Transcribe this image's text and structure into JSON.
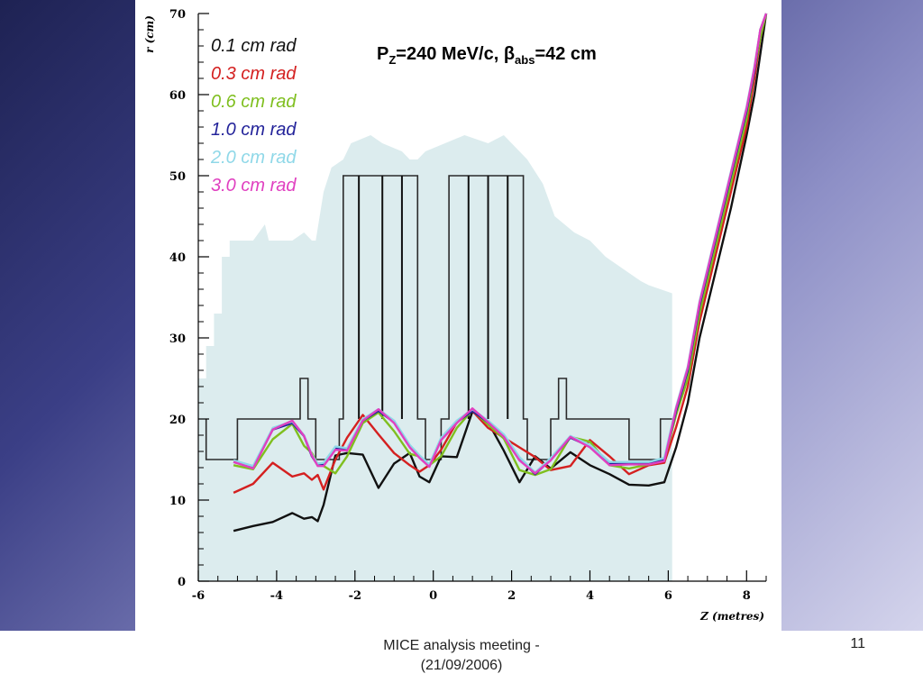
{
  "slide": {
    "footer_line1": "MICE analysis meeting -",
    "footer_line2": "(21/09/2006)",
    "number": "11"
  },
  "colors": {
    "background_dark": "#1e2253",
    "background_light": "#d4d4ec",
    "aperture_fill": "#dcecee"
  },
  "chart_data": {
    "type": "line",
    "title": "P_Z=240 MeV/c, β_abs=42 cm",
    "title_parts": {
      "p": "P",
      "p_sub": "Z",
      "mid": "=240 MeV/c, ",
      "beta": "β",
      "beta_sub": "abs",
      "end": "=42 cm"
    },
    "xlabel": "Z (metres)",
    "ylabel": "r (cm)",
    "xlim": [
      -6,
      8.5
    ],
    "ylim": [
      0,
      70
    ],
    "xticks": [
      "-6",
      "-4",
      "-2",
      "0",
      "2",
      "4",
      "6",
      "8"
    ],
    "yticks": [
      "0",
      "10",
      "20",
      "30",
      "40",
      "50",
      "60",
      "70"
    ],
    "grid": false,
    "legend_position": "top-left",
    "aperture": [
      [
        -6,
        25
      ],
      [
        -5.8,
        25
      ],
      [
        -5.8,
        29
      ],
      [
        -5.6,
        29
      ],
      [
        -5.6,
        33
      ],
      [
        -5.4,
        33
      ],
      [
        -5.4,
        40
      ],
      [
        -5.2,
        40
      ],
      [
        -5.2,
        42
      ],
      [
        -4.6,
        42
      ],
      [
        -4.3,
        44
      ],
      [
        -4.2,
        42
      ],
      [
        -3.6,
        42
      ],
      [
        -3.3,
        43
      ],
      [
        -3.1,
        42
      ],
      [
        -3,
        42
      ],
      [
        -2.8,
        48
      ],
      [
        -2.6,
        51
      ],
      [
        -2.3,
        52
      ],
      [
        -2.1,
        54
      ],
      [
        -1.6,
        55
      ],
      [
        -1.3,
        54
      ],
      [
        -0.8,
        53
      ],
      [
        -0.6,
        52
      ],
      [
        -0.4,
        52
      ],
      [
        -0.2,
        53
      ],
      [
        0.3,
        54
      ],
      [
        0.8,
        55
      ],
      [
        1.4,
        54
      ],
      [
        1.8,
        55
      ],
      [
        2.4,
        52
      ],
      [
        2.8,
        49
      ],
      [
        3.1,
        45
      ],
      [
        3.6,
        43
      ],
      [
        4.0,
        42
      ],
      [
        4.4,
        40
      ],
      [
        5.0,
        38
      ],
      [
        5.3,
        37
      ],
      [
        5.5,
        36.5
      ],
      [
        6.1,
        35.5
      ],
      [
        6.1,
        0
      ],
      [
        -6,
        0
      ]
    ],
    "magnet_outline": [
      [
        -5.8,
        20
      ],
      [
        -5.8,
        15
      ],
      [
        -5.0,
        15
      ],
      [
        -5.0,
        20
      ],
      [
        -3.4,
        20
      ],
      [
        -3.4,
        25
      ],
      [
        -3.2,
        25
      ],
      [
        -3.2,
        20
      ],
      [
        -3.0,
        20
      ],
      [
        -3.0,
        15
      ],
      [
        -2.4,
        15
      ],
      [
        -2.4,
        20
      ],
      [
        -2.3,
        20
      ],
      [
        -2.3,
        50
      ],
      [
        -0.4,
        50
      ],
      [
        -0.4,
        20
      ],
      [
        -0.2,
        20
      ],
      [
        -0.2,
        15
      ],
      [
        0.2,
        15
      ],
      [
        0.2,
        20
      ],
      [
        0.4,
        20
      ],
      [
        0.4,
        50
      ],
      [
        2.3,
        50
      ],
      [
        2.3,
        20
      ],
      [
        2.4,
        20
      ],
      [
        2.4,
        15
      ],
      [
        3.0,
        15
      ],
      [
        3.0,
        20
      ],
      [
        3.2,
        20
      ],
      [
        3.2,
        25
      ],
      [
        3.4,
        25
      ],
      [
        3.4,
        20
      ],
      [
        5.0,
        20
      ],
      [
        5.0,
        15
      ],
      [
        5.8,
        15
      ],
      [
        5.8,
        20
      ],
      [
        6.1,
        20
      ]
    ],
    "coil_dividers_x": [
      -1.9,
      -1.3,
      -0.8,
      0.9,
      1.4,
      1.9
    ],
    "series": [
      {
        "name": "0.1 cm rad",
        "color": "#111111",
        "x": [
          -5.1,
          -4.6,
          -4.1,
          -3.6,
          -3.3,
          -3.1,
          -2.95,
          -2.8,
          -2.5,
          -2.2,
          -1.8,
          -1.4,
          -1.0,
          -0.6,
          -0.35,
          -0.1,
          0.2,
          0.6,
          1.0,
          1.4,
          1.8,
          2.2,
          2.6,
          3.0,
          3.5,
          4.0,
          4.5,
          5.0,
          5.5,
          5.9,
          6.2,
          6.5,
          6.8,
          7.2,
          7.6,
          8.0,
          8.2,
          8.35,
          8.5
        ],
        "y": [
          6.2,
          6.8,
          7.3,
          8.4,
          7.7,
          7.9,
          7.4,
          9.4,
          15.5,
          15.8,
          15.6,
          11.5,
          14.5,
          15.8,
          12.9,
          12.2,
          15.4,
          15.3,
          20.9,
          19.6,
          16.1,
          12.2,
          15.4,
          13.9,
          15.9,
          14.3,
          13.2,
          11.9,
          11.8,
          12.2,
          16.5,
          22.0,
          30.0,
          38.0,
          46.0,
          55.0,
          60.0,
          65.0,
          70.0
        ]
      },
      {
        "name": "0.3 cm rad",
        "color": "#d42020",
        "x": [
          -5.1,
          -4.6,
          -4.1,
          -3.6,
          -3.3,
          -3.1,
          -2.95,
          -2.8,
          -2.5,
          -2.2,
          -1.8,
          -1.4,
          -1.0,
          -0.6,
          -0.35,
          -0.1,
          0.2,
          0.6,
          1.0,
          1.4,
          1.8,
          2.2,
          2.6,
          3.0,
          3.5,
          4.0,
          4.5,
          5.0,
          5.5,
          5.9,
          6.2,
          6.5,
          6.8,
          7.2,
          7.6,
          8.0,
          8.2,
          8.35,
          8.5
        ],
        "y": [
          10.9,
          12.0,
          14.6,
          12.9,
          13.3,
          12.5,
          13.1,
          11.3,
          15.0,
          17.7,
          20.5,
          18.1,
          15.8,
          14.3,
          13.5,
          14.3,
          16.2,
          19.6,
          21.0,
          18.9,
          17.7,
          16.5,
          15.3,
          13.7,
          14.2,
          17.4,
          15.4,
          13.2,
          14.3,
          14.6,
          19.0,
          24.0,
          32.0,
          40.0,
          48.0,
          56.0,
          62.0,
          67.0,
          70.0
        ]
      },
      {
        "name": "0.6 cm rad",
        "color": "#7fbf1f",
        "x": [
          -5.1,
          -4.6,
          -4.1,
          -3.6,
          -3.3,
          -3.1,
          -2.95,
          -2.8,
          -2.5,
          -2.2,
          -1.8,
          -1.4,
          -1.0,
          -0.6,
          -0.35,
          -0.1,
          0.2,
          0.6,
          1.0,
          1.4,
          1.8,
          2.2,
          2.6,
          3.0,
          3.5,
          4.0,
          4.5,
          5.0,
          5.5,
          5.9,
          6.2,
          6.5,
          6.8,
          7.2,
          7.6,
          8.0,
          8.2,
          8.35,
          8.5
        ],
        "y": [
          14.3,
          13.8,
          17.5,
          19.4,
          16.7,
          15.8,
          14.4,
          14.2,
          13.3,
          15.4,
          19.5,
          20.8,
          18.5,
          15.7,
          15.4,
          14.3,
          15.4,
          18.9,
          21.1,
          19.3,
          17.6,
          13.7,
          13.1,
          13.8,
          17.8,
          17.2,
          14.3,
          13.9,
          14.4,
          14.9,
          20.5,
          25.0,
          33.0,
          41.0,
          49.0,
          57.0,
          63.0,
          67.0,
          70.0
        ]
      },
      {
        "name": "1.0 cm rad",
        "color": "#23239a",
        "x": [
          -5.1,
          -4.6,
          -4.1,
          -3.6,
          -3.3,
          -3.1,
          -2.95,
          -2.8,
          -2.5,
          -2.2,
          -1.8,
          -1.4,
          -1.0,
          -0.6,
          -0.35,
          -0.1,
          0.2,
          0.6,
          1.0,
          1.4,
          1.8,
          2.2,
          2.6,
          3.0,
          3.5,
          4.0,
          4.5,
          5.0,
          5.5,
          5.9,
          6.2,
          6.5,
          6.8,
          7.2,
          7.6,
          8.0,
          8.2,
          8.35,
          8.5
        ],
        "y": [
          14.7,
          14.0,
          18.7,
          19.5,
          17.9,
          15.4,
          14.3,
          14.4,
          16.4,
          16.2,
          19.8,
          21.0,
          19.6,
          16.6,
          15.3,
          14.2,
          17.5,
          19.6,
          21.0,
          19.6,
          17.9,
          15.1,
          13.2,
          15.0,
          17.7,
          16.6,
          14.5,
          14.5,
          14.5,
          15.0,
          21.0,
          26.0,
          34.0,
          42.0,
          50.0,
          58.0,
          63.0,
          68.0,
          70.0
        ]
      },
      {
        "name": "2.0 cm rad",
        "color": "#8fd8e8",
        "x": [
          -5.1,
          -4.6,
          -4.1,
          -3.6,
          -3.3,
          -3.1,
          -2.95,
          -2.8,
          -2.5,
          -2.2,
          -1.8,
          -1.4,
          -1.0,
          -0.6,
          -0.35,
          -0.1,
          0.2,
          0.6,
          1.0,
          1.4,
          1.8,
          2.2,
          2.6,
          3.0,
          3.5,
          4.0,
          4.5,
          5.0,
          5.5,
          5.9,
          6.2,
          6.5,
          6.8,
          7.2,
          7.6,
          8.0,
          8.2,
          8.35,
          8.5
        ],
        "y": [
          14.9,
          14.2,
          18.9,
          19.7,
          18.0,
          15.6,
          14.5,
          14.6,
          16.6,
          16.4,
          20.0,
          21.2,
          19.8,
          16.8,
          15.5,
          14.4,
          17.7,
          19.8,
          21.2,
          19.8,
          18.1,
          15.3,
          13.4,
          15.2,
          17.9,
          16.8,
          14.7,
          14.7,
          14.7,
          15.2,
          21.5,
          26.5,
          34.5,
          42.5,
          50.5,
          58.5,
          63.5,
          68.0,
          70.0
        ]
      },
      {
        "name": "3.0 cm rad",
        "color": "#e040c0",
        "x": [
          -5.1,
          -4.6,
          -4.1,
          -3.6,
          -3.3,
          -3.1,
          -2.95,
          -2.8,
          -2.5,
          -2.2,
          -1.8,
          -1.4,
          -1.0,
          -0.6,
          -0.35,
          -0.1,
          0.2,
          0.6,
          1.0,
          1.4,
          1.8,
          2.2,
          2.6,
          3.0,
          3.5,
          4.0,
          4.5,
          5.0,
          5.5,
          5.9,
          6.2,
          6.5,
          6.8,
          7.2,
          7.6,
          8.0,
          8.2,
          8.35,
          8.5
        ],
        "y": [
          14.7,
          13.9,
          18.7,
          19.8,
          17.9,
          15.5,
          14.2,
          14.2,
          16.2,
          16.1,
          19.8,
          21.2,
          19.5,
          16.5,
          15.2,
          14.1,
          17.4,
          19.5,
          21.3,
          19.6,
          17.8,
          14.9,
          13.3,
          14.9,
          17.8,
          16.5,
          14.3,
          14.4,
          14.4,
          14.8,
          21.3,
          26.3,
          34.3,
          42.3,
          50.3,
          58.3,
          63.3,
          68.0,
          70.0
        ]
      }
    ]
  }
}
